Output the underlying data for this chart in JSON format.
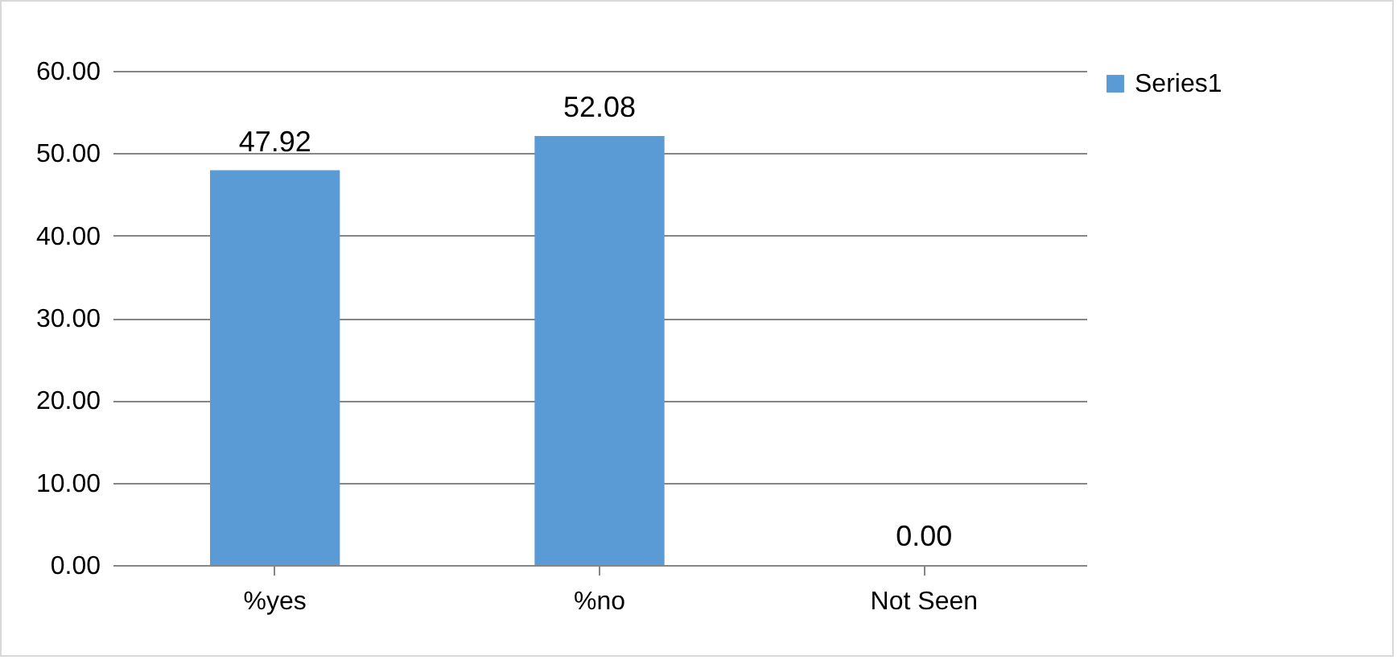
{
  "chart_data": {
    "type": "bar",
    "categories": [
      "%yes",
      "%no",
      "Not Seen"
    ],
    "series": [
      {
        "name": "Series1",
        "color": "#5b9bd5",
        "values": [
          47.92,
          52.08,
          0
        ]
      }
    ],
    "value_labels": [
      "47.92",
      "52.08",
      "0.00"
    ],
    "ylim": [
      0,
      60
    ],
    "yticks": [
      {
        "value": 0,
        "label": "0.00"
      },
      {
        "value": 10,
        "label": "10.00"
      },
      {
        "value": 20,
        "label": "20.00"
      },
      {
        "value": 30,
        "label": "30.00"
      },
      {
        "value": 40,
        "label": "40.00"
      },
      {
        "value": 50,
        "label": "50.00"
      },
      {
        "value": 60,
        "label": "60.00"
      }
    ],
    "grid": "y",
    "legend": "right"
  }
}
